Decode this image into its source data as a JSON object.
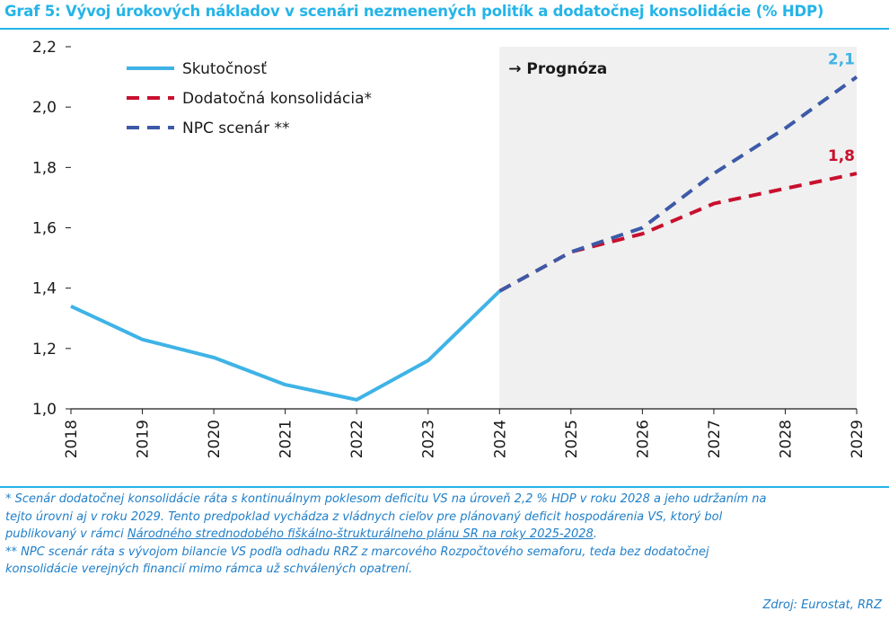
{
  "title": "Graf 5: Vývoj úrokových nákladov v scenári nezmenených politík a dodatočnej konsolidácie (% HDP)",
  "forecast_label": "→ Prognóza",
  "chart_data": {
    "type": "line",
    "x": [
      "2018",
      "2019",
      "2020",
      "2021",
      "2022",
      "2023",
      "2024",
      "2025",
      "2026",
      "2027",
      "2028",
      "2029"
    ],
    "ylim": [
      1.0,
      2.2
    ],
    "yticks": [
      "1,0",
      "1,2",
      "1,4",
      "1,6",
      "1,8",
      "2,0",
      "2,2"
    ],
    "ytick_values": [
      1.0,
      1.2,
      1.4,
      1.6,
      1.8,
      2.0,
      2.2
    ],
    "forecast_region": [
      "2024",
      "2029"
    ],
    "legend_position": "top-left",
    "grid": false,
    "series": [
      {
        "name": "Skutočnosť",
        "color": "#3fb3e6",
        "style": "solid",
        "values": [
          1.34,
          1.23,
          1.17,
          1.08,
          1.03,
          1.16,
          1.39,
          null,
          null,
          null,
          null,
          null
        ]
      },
      {
        "name": "Dodatočná konsolidácia*",
        "color": "#c8102e",
        "style": "dashed",
        "values": [
          null,
          null,
          null,
          null,
          null,
          null,
          1.39,
          1.52,
          1.58,
          1.68,
          1.73,
          1.78
        ]
      },
      {
        "name": "NPC scenár **",
        "color": "#3d5aa8",
        "style": "dashed",
        "values": [
          null,
          null,
          null,
          null,
          null,
          null,
          1.39,
          1.52,
          1.6,
          1.78,
          1.93,
          2.1
        ]
      }
    ],
    "annotations": [
      {
        "text": "2,1",
        "x": "2029",
        "y": 2.1,
        "color": "#3fb3e6"
      },
      {
        "text": "1,8",
        "x": "2029",
        "y": 1.78,
        "color": "#c8102e"
      }
    ]
  },
  "notes": {
    "line1": "* Scenár dodatočnej konsolidácie ráta s kontinuálnym poklesom deficitu VS na úroveň 2,2 % HDP v roku 2028 a jeho udržaním na",
    "line2": "tejto úrovni aj v roku 2029. Tento predpoklad vychádza z vládnych cieľov pre plánovaný deficit hospodárenia VS, ktorý bol",
    "line3_pre": "publikovaný v rámci ",
    "line3_link": "Národného strednodobého fiškálno-štrukturálneho plánu SR na roky 2025-2028",
    "line3_post": ".",
    "line4": "** NPC scenár ráta s vývojom bilancie VS podľa odhadu RRZ z marcového Rozpočtového semaforu, teda bez dodatočnej",
    "line5": "konsolidácie verejných financií mimo rámca už schválených opatrení."
  },
  "source": "Zdroj: Eurostat, RRZ"
}
